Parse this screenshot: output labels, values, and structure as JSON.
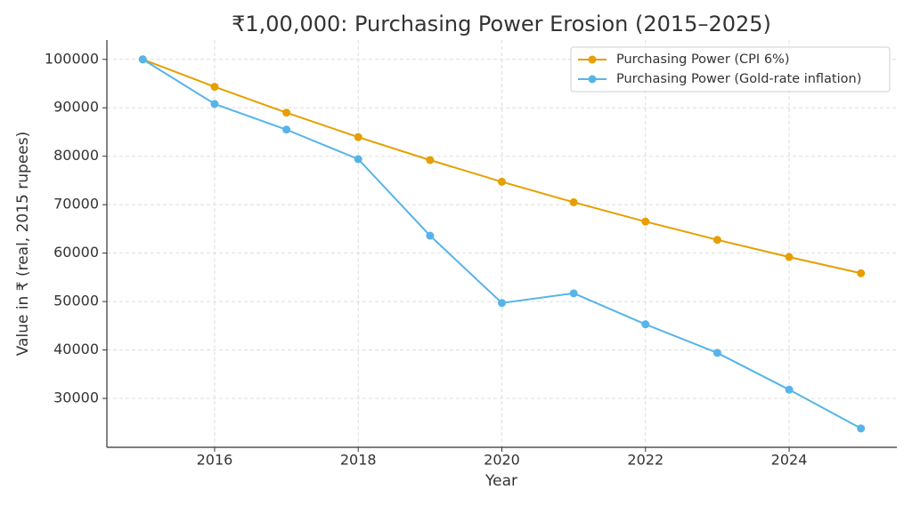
{
  "chart_data": {
    "type": "line",
    "title": "₹1,00,000: Purchasing Power Erosion (2015–2025)",
    "xlabel": "Year",
    "ylabel": "Value in ₹ (real, 2015 rupees)",
    "x": [
      2015,
      2016,
      2017,
      2018,
      2019,
      2020,
      2021,
      2022,
      2023,
      2024,
      2025
    ],
    "series": [
      {
        "name": "Purchasing Power (CPI 6%)",
        "color": "#e69f00",
        "values": [
          100000,
          94340,
          89000,
          83960,
          79210,
          74730,
          70500,
          66510,
          62740,
          59190,
          55840
        ]
      },
      {
        "name": "Purchasing Power (Gold-rate inflation)",
        "color": "#56b4e9",
        "values": [
          100000,
          90800,
          85500,
          79400,
          63600,
          49700,
          51700,
          45300,
          39400,
          31800,
          23800
        ]
      }
    ],
    "xlim": [
      2014.5,
      2025.5
    ],
    "xticks": [
      2016,
      2018,
      2020,
      2022,
      2024
    ],
    "ylim": [
      19900,
      104000
    ],
    "yticks": [
      30000,
      40000,
      50000,
      60000,
      70000,
      80000,
      90000,
      100000
    ],
    "grid": true,
    "legend": "upper-right"
  }
}
